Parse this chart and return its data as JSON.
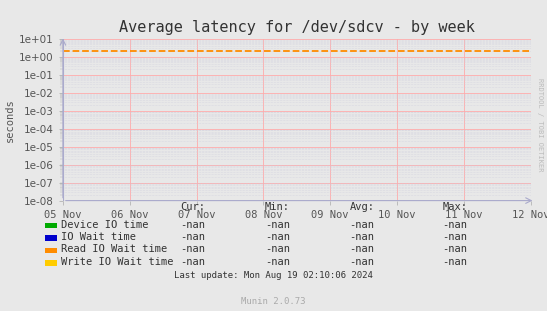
{
  "title": "Average latency for /dev/sdcv - by week",
  "ylabel": "seconds",
  "background_color": "#e8e8e8",
  "plot_bg_color": "#e8e8e8",
  "grid_major_color": "#ffaaaa",
  "grid_minor_color": "#ccccdd",
  "x_tick_labels": [
    "05 Nov",
    "06 Nov",
    "07 Nov",
    "08 Nov",
    "09 Nov",
    "10 Nov",
    "11 Nov",
    "12 Nov"
  ],
  "ymin": 1e-08,
  "ymax": 10.0,
  "dashed_line_y": 2.2,
  "dashed_line_color": "#ff8c00",
  "right_label": "RRDTOOL / TOBI OETIKER",
  "legend_entries": [
    {
      "label": "Device IO time",
      "color": "#00aa00"
    },
    {
      "label": "IO Wait time",
      "color": "#0000cc"
    },
    {
      "label": "Read IO Wait time",
      "color": "#ff8c00"
    },
    {
      "label": "Write IO Wait time",
      "color": "#ffcc00"
    }
  ],
  "legend_cols": [
    "Cur:",
    "Min:",
    "Avg:",
    "Max:"
  ],
  "legend_values": [
    "-nan",
    "-nan",
    "-nan",
    "-nan"
  ],
  "footer": "Last update: Mon Aug 19 02:10:06 2024",
  "munin_label": "Munin 2.0.73",
  "title_fontsize": 11,
  "axis_fontsize": 7.5,
  "legend_fontsize": 7.5,
  "spine_color": "#aaaacc",
  "arrow_color": "#aaaacc"
}
